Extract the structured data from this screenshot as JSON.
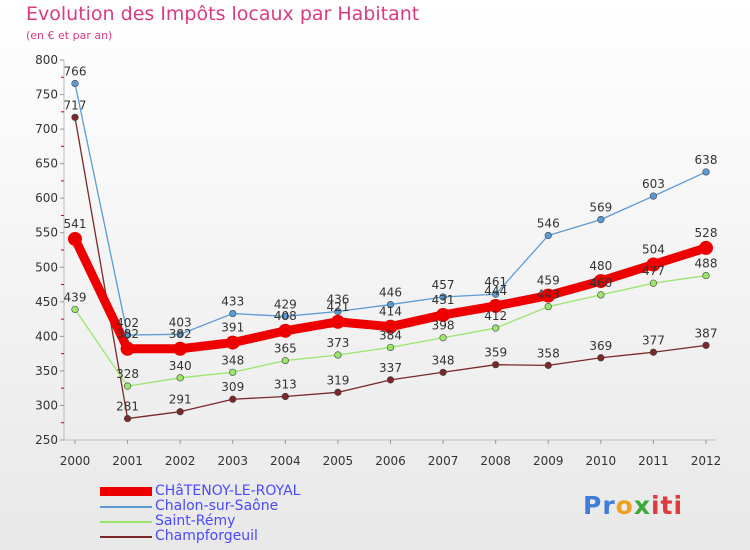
{
  "chart_data": {
    "type": "line",
    "title": "Evolution des Impôts locaux par Habitant",
    "subtitle": "(en € et par an)",
    "xlabel": "",
    "ylabel": "",
    "ylim": [
      250,
      800
    ],
    "yticks": [
      250,
      300,
      350,
      400,
      450,
      500,
      550,
      600,
      650,
      700,
      750,
      800
    ],
    "grid": false,
    "legend_position": "bottom-left",
    "categories": [
      "2000",
      "2001",
      "2002",
      "2003",
      "2004",
      "2005",
      "2006",
      "2007",
      "2008",
      "2009",
      "2010",
      "2011",
      "2012"
    ],
    "series": [
      {
        "name": "CHâTENOY-LE-ROYAL",
        "color": "#ee0000",
        "values": [
          541,
          382,
          382,
          391,
          408,
          421,
          414,
          431,
          444,
          459,
          480,
          504,
          528
        ]
      },
      {
        "name": "Chalon-sur-Saône",
        "color": "#5b9bd5",
        "values": [
          766,
          402,
          403,
          433,
          429,
          436,
          446,
          457,
          461,
          546,
          569,
          603,
          638
        ]
      },
      {
        "name": "Saint-Rémy",
        "color": "#99e66b",
        "values": [
          439,
          328,
          340,
          348,
          365,
          373,
          384,
          398,
          412,
          443,
          460,
          477,
          488
        ]
      },
      {
        "name": "Champforgeuil",
        "color": "#7a2828",
        "values": [
          717,
          281,
          291,
          309,
          313,
          319,
          337,
          348,
          359,
          358,
          369,
          377,
          387
        ]
      }
    ]
  },
  "brand": {
    "parts": [
      "Pr",
      "o",
      "x",
      "iti"
    ]
  }
}
